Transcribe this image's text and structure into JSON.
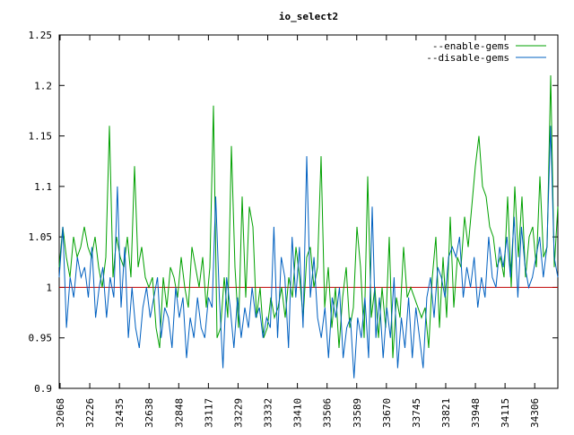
{
  "chart_data": {
    "type": "line",
    "title": "io_select2",
    "xlabel": "",
    "ylabel": "",
    "ylim": [
      0.9,
      1.25
    ],
    "y_ticks": [
      "0.9",
      "0.95",
      "1",
      "1.05",
      "1.1",
      "1.15",
      "1.2",
      "1.25"
    ],
    "x_tick_labels": [
      "32068",
      "32226",
      "32435",
      "32638",
      "32848",
      "33117",
      "33229",
      "33332",
      "33410",
      "33506",
      "33589",
      "33670",
      "33745",
      "33821",
      "33948",
      "34115",
      "34306"
    ],
    "legend_position": "top-right",
    "grid": false,
    "reference_line": {
      "y": 1,
      "color": "#c00000"
    },
    "series": [
      {
        "name": "--enable-gems",
        "color": "#00a000",
        "values": [
          1.02,
          1.06,
          1.03,
          1.01,
          1.05,
          1.03,
          1.04,
          1.06,
          1.04,
          1.03,
          1.05,
          1.02,
          1.0,
          1.03,
          1.16,
          1.01,
          1.05,
          1.03,
          1.02,
          1.05,
          1.01,
          1.12,
          1.02,
          1.04,
          1.01,
          1.0,
          1.01,
          0.96,
          0.94,
          1.01,
          0.98,
          1.02,
          1.01,
          0.99,
          1.03,
          1.0,
          0.98,
          1.04,
          1.02,
          1.0,
          1.03,
          0.98,
          1.02,
          1.18,
          0.95,
          0.96,
          1.01,
          0.97,
          1.14,
          1.02,
          0.96,
          1.09,
          0.99,
          1.08,
          1.06,
          0.97,
          1.0,
          0.95,
          0.96,
          0.99,
          0.97,
          0.98,
          1.0,
          0.97,
          1.01,
          0.99,
          1.04,
          1.01,
          0.97,
          1.03,
          1.04,
          1.0,
          1.02,
          1.13,
          0.98,
          1.02,
          0.96,
          1.0,
          0.94,
          0.99,
          1.02,
          0.96,
          0.98,
          1.06,
          1.02,
          0.95,
          1.11,
          0.97,
          1.0,
          0.95,
          1.0,
          0.96,
          1.05,
          0.93,
          0.99,
          0.97,
          1.04,
          0.99,
          1.0,
          0.99,
          0.98,
          0.97,
          0.98,
          0.94,
          1.01,
          1.05,
          0.96,
          1.03,
          0.97,
          1.07,
          0.98,
          1.03,
          1.02,
          1.07,
          1.04,
          1.08,
          1.12,
          1.15,
          1.1,
          1.09,
          1.06,
          1.05,
          1.02,
          1.03,
          1.01,
          1.09,
          1.0,
          1.1,
          1.03,
          1.09,
          1.01,
          1.05,
          1.06,
          1.02,
          1.11,
          1.03,
          1.04,
          1.21,
          1.02,
          1.08
        ]
      },
      {
        "name": "--disable-gems",
        "color": "#0060c0",
        "values": [
          1.01,
          1.06,
          0.96,
          1.01,
          0.99,
          1.03,
          1.01,
          1.02,
          0.99,
          1.04,
          0.97,
          1.0,
          1.02,
          0.97,
          1.01,
          0.99,
          1.1,
          0.98,
          1.04,
          0.95,
          1.0,
          0.96,
          0.94,
          0.98,
          1.0,
          0.97,
          0.99,
          1.01,
          0.95,
          0.98,
          0.97,
          0.94,
          1.0,
          0.97,
          0.99,
          0.93,
          0.97,
          0.95,
          0.99,
          0.96,
          0.95,
          0.99,
          0.98,
          1.09,
          0.99,
          0.92,
          1.01,
          0.98,
          0.94,
          0.99,
          0.95,
          0.98,
          0.96,
          1.0,
          0.97,
          0.98,
          0.95,
          0.97,
          0.96,
          1.06,
          0.95,
          1.03,
          1.01,
          0.94,
          1.05,
          0.99,
          1.04,
          0.96,
          1.13,
          0.99,
          1.03,
          0.97,
          0.95,
          0.98,
          0.93,
          0.99,
          0.97,
          1.0,
          0.93,
          0.96,
          0.97,
          0.91,
          0.97,
          0.95,
          0.99,
          0.93,
          1.08,
          0.95,
          0.99,
          0.93,
          0.98,
          0.95,
          1.01,
          0.92,
          0.97,
          0.94,
          0.99,
          0.93,
          0.98,
          0.95,
          0.92,
          0.99,
          1.01,
          0.97,
          1.02,
          1.01,
          0.99,
          1.03,
          1.04,
          1.03,
          1.05,
          0.99,
          1.02,
          1.0,
          1.03,
          0.98,
          1.01,
          0.99,
          1.05,
          1.01,
          1.0,
          1.04,
          1.02,
          1.05,
          1.01,
          1.07,
          0.99,
          1.06,
          1.02,
          1.0,
          1.01,
          1.03,
          1.05,
          1.01,
          1.04,
          1.16,
          1.03,
          1.01
        ]
      }
    ]
  }
}
